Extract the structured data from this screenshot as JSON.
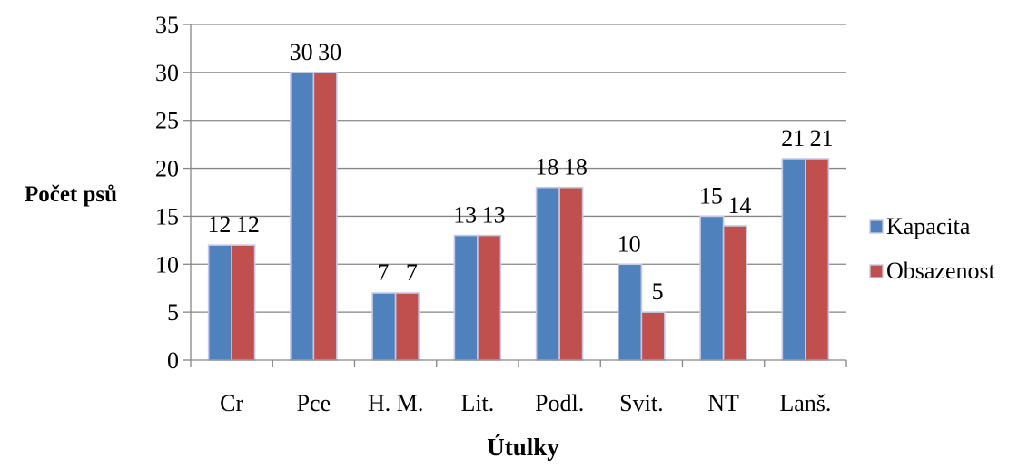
{
  "chart_data": {
    "type": "bar",
    "title": "",
    "xlabel": "Útulky",
    "ylabel": "Počet psů",
    "categories": [
      "Cr",
      "Pce",
      "H. M.",
      "Lit.",
      "Podl.",
      "Svit.",
      "NT",
      "Lanš."
    ],
    "series": [
      {
        "name": "Kapacita",
        "values": [
          12,
          30,
          7,
          13,
          18,
          10,
          15,
          21
        ],
        "color": "#4F81BD"
      },
      {
        "name": "Obsazenost",
        "values": [
          12,
          30,
          7,
          13,
          18,
          5,
          14,
          21
        ],
        "color": "#C0504D"
      }
    ],
    "ylim": [
      0,
      35
    ],
    "yticks": [
      0,
      5,
      10,
      15,
      20,
      25,
      30,
      35
    ],
    "grid": true,
    "legend": "right",
    "data_labels": true
  }
}
